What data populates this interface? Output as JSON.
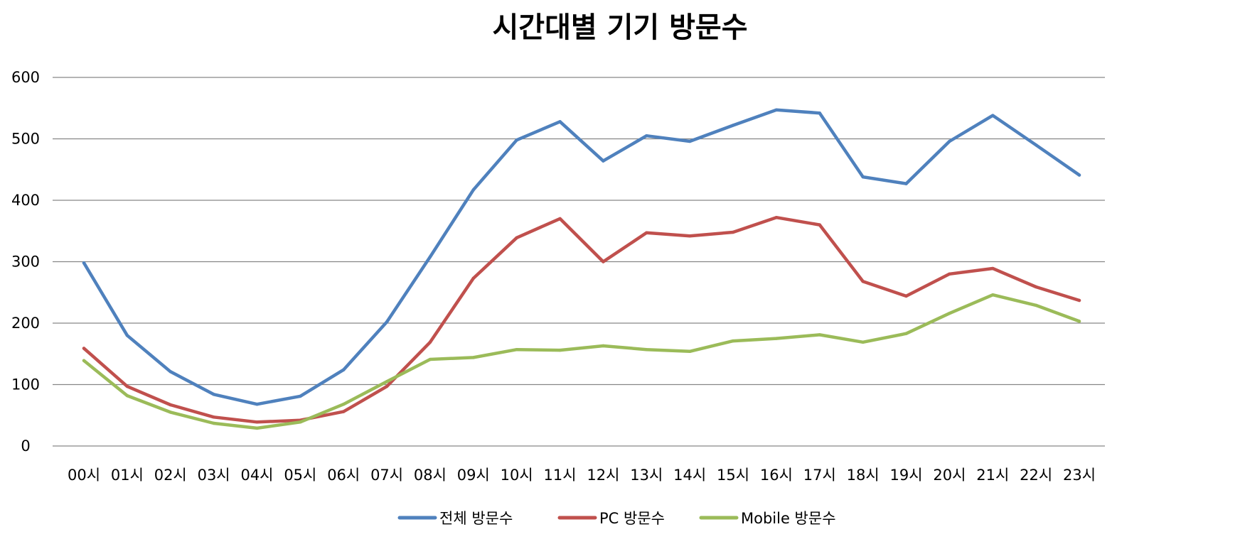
{
  "chart_data": {
    "type": "line",
    "title": "시간대별 기기 방문수",
    "xlabel": "",
    "ylabel": "",
    "categories": [
      "00시",
      "01시",
      "02시",
      "03시",
      "04시",
      "05시",
      "06시",
      "07시",
      "08시",
      "09시",
      "10시",
      "11시",
      "12시",
      "13시",
      "14시",
      "15시",
      "16시",
      "17시",
      "18시",
      "19시",
      "20시",
      "21시",
      "22시",
      "23시"
    ],
    "ylim": [
      0,
      600
    ],
    "yticks": [
      0,
      100,
      200,
      300,
      400,
      500,
      600
    ],
    "grid": true,
    "legend_position": "bottom",
    "series": [
      {
        "name": "전체 방문수",
        "color": "#4F81BD",
        "values": [
          298,
          180,
          121,
          84,
          68,
          81,
          124,
          202,
          308,
          417,
          498,
          528,
          464,
          505,
          496,
          522,
          547,
          542,
          438,
          427,
          496,
          538,
          490,
          441
        ]
      },
      {
        "name": "PC 방문수",
        "color": "#C0504D",
        "values": [
          159,
          97,
          67,
          47,
          39,
          42,
          56,
          97,
          169,
          273,
          339,
          370,
          300,
          347,
          342,
          348,
          372,
          360,
          268,
          244,
          280,
          289,
          259,
          237
        ]
      },
      {
        "name": "Mobile 방문수",
        "color": "#9BBB59",
        "values": [
          139,
          82,
          55,
          37,
          29,
          39,
          68,
          105,
          141,
          144,
          157,
          156,
          163,
          157,
          154,
          171,
          175,
          181,
          169,
          183,
          216,
          246,
          229,
          203
        ]
      }
    ]
  }
}
